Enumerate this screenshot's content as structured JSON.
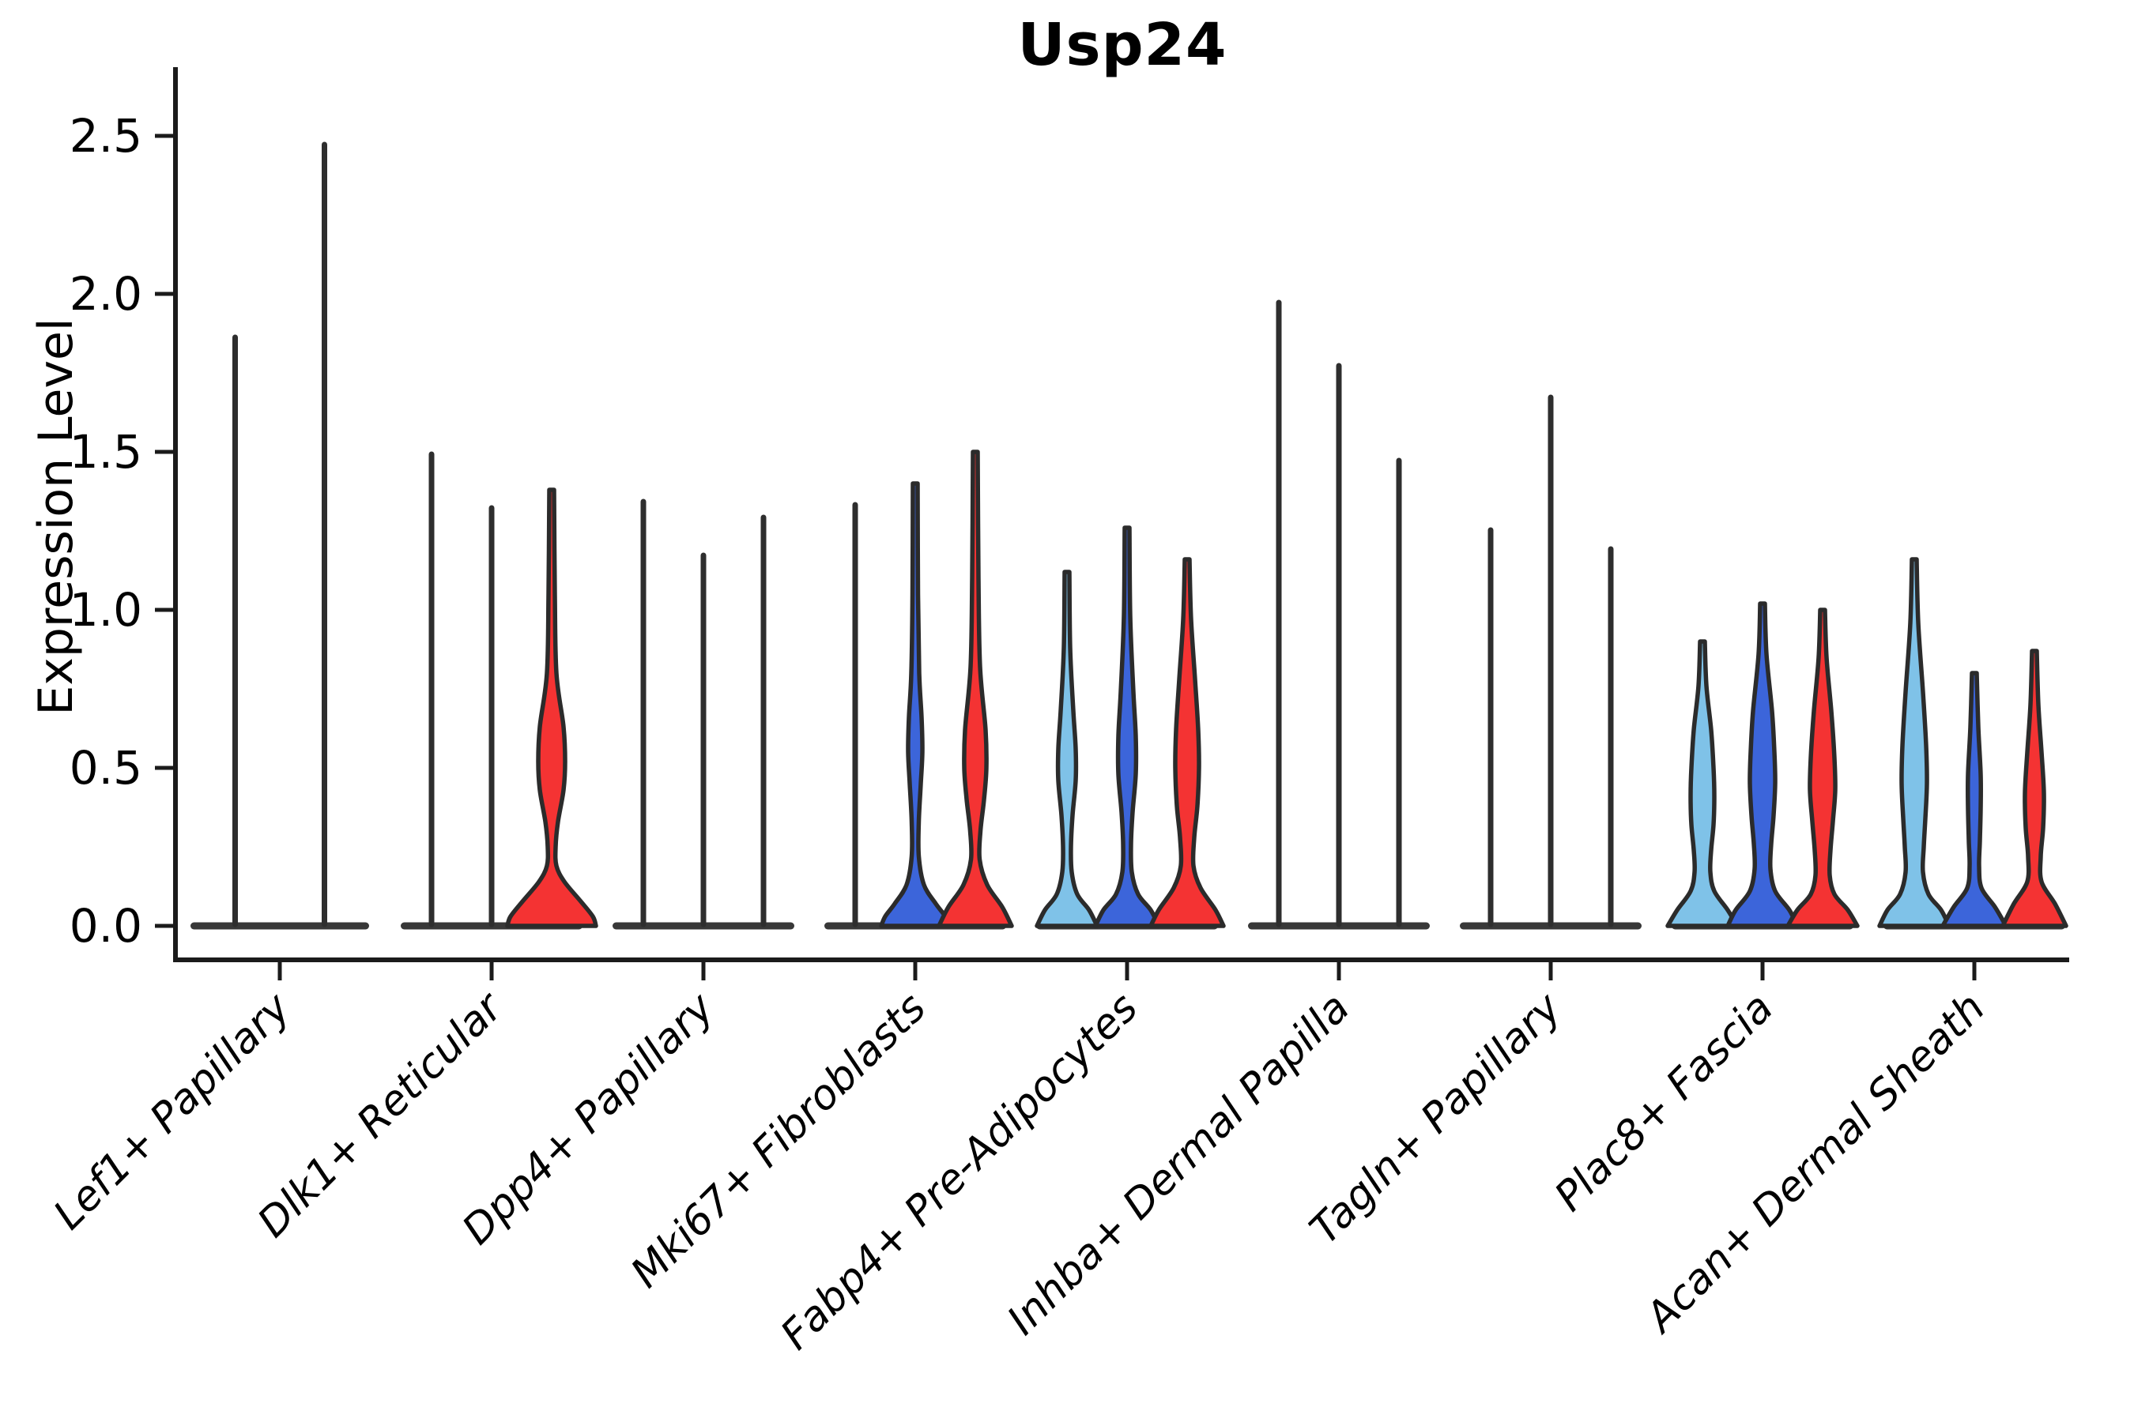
{
  "title": "Usp24",
  "y_axis": {
    "label": "Expression Level",
    "ticks": [
      {
        "label": "0.0",
        "value": 0.0
      },
      {
        "label": "0.5",
        "value": 0.5
      },
      {
        "label": "1.0",
        "value": 1.0
      },
      {
        "label": "1.5",
        "value": 1.5
      },
      {
        "label": "2.0",
        "value": 2.0
      },
      {
        "label": "2.5",
        "value": 2.5
      }
    ]
  },
  "colors": {
    "light_blue": "#7FC2E8",
    "blue": "#3C65DA",
    "red": "#F43333",
    "outline": "#2B2B2B",
    "spike": "#2E2E2E",
    "baseline": "#383838",
    "axis": "#1B1B1B",
    "text": "#000000"
  },
  "chart_data": {
    "type": "violin",
    "title": "Usp24",
    "xlabel": "",
    "ylabel": "Expression Level",
    "ylim": [
      0,
      2.6
    ],
    "grid": false,
    "legend": "none",
    "series_order": [
      "light_blue",
      "blue",
      "red"
    ],
    "categories": [
      "Lef1+ Papillary",
      "Dlk1+ Reticular",
      "Dpp4+ Papillary",
      "Mki67+ Fibroblasts",
      "Fabp4+ Pre-Adipocytes",
      "Inhba+ Dermal Papilla",
      "Tagln+ Papillary",
      "Plac8+ Fascia",
      "Acan+ Dermal Sheath"
    ],
    "groups": [
      {
        "label": "Lef1+ Papillary",
        "violins": [
          {
            "color": "light_blue",
            "max": 1.87,
            "shape": "spike"
          },
          {
            "color": "blue",
            "max": 2.48,
            "shape": "spike"
          }
        ]
      },
      {
        "label": "Dlk1+ Reticular",
        "violins": [
          {
            "color": "light_blue",
            "max": 1.5,
            "shape": "spike"
          },
          {
            "color": "blue",
            "max": 1.33,
            "shape": "spike"
          },
          {
            "color": "red",
            "max": 1.38,
            "shape": "filled",
            "profile": [
              [
                1.38,
                3
              ],
              [
                1.05,
                4
              ],
              [
                0.8,
                6
              ],
              [
                0.63,
                15
              ],
              [
                0.52,
                17
              ],
              [
                0.43,
                15
              ],
              [
                0.33,
                8
              ],
              [
                0.25,
                5
              ],
              [
                0.19,
                6
              ],
              [
                0.14,
                16
              ],
              [
                0.08,
                36
              ],
              [
                0.03,
                52
              ],
              [
                0,
                56
              ]
            ]
          }
        ]
      },
      {
        "label": "Dpp4+ Papillary",
        "violins": [
          {
            "color": "light_blue",
            "max": 1.35,
            "shape": "spike"
          },
          {
            "color": "blue",
            "max": 1.18,
            "shape": "spike"
          },
          {
            "color": "red",
            "max": 1.3,
            "shape": "spike"
          }
        ]
      },
      {
        "label": "Mki67+ Fibroblasts",
        "violins": [
          {
            "color": "light_blue",
            "max": 1.34,
            "shape": "spike"
          },
          {
            "color": "blue",
            "max": 1.4,
            "shape": "filled",
            "profile": [
              [
                1.4,
                3
              ],
              [
                1.05,
                3.5
              ],
              [
                0.8,
                5
              ],
              [
                0.66,
                8
              ],
              [
                0.55,
                9
              ],
              [
                0.45,
                7
              ],
              [
                0.33,
                4.5
              ],
              [
                0.22,
                4.5
              ],
              [
                0.13,
                11
              ],
              [
                0.07,
                26
              ],
              [
                0.03,
                38
              ],
              [
                0,
                43
              ]
            ]
          },
          {
            "color": "red",
            "max": 1.5,
            "shape": "filled",
            "profile": [
              [
                1.5,
                3
              ],
              [
                1.1,
                4
              ],
              [
                0.82,
                6
              ],
              [
                0.62,
                13
              ],
              [
                0.5,
                14
              ],
              [
                0.4,
                11
              ],
              [
                0.3,
                6.5
              ],
              [
                0.21,
                5.5
              ],
              [
                0.13,
                15
              ],
              [
                0.06,
                34
              ],
              [
                0,
                46
              ]
            ]
          }
        ]
      },
      {
        "label": "Fabp4+ Pre-Adipocytes",
        "violins": [
          {
            "color": "light_blue",
            "max": 1.12,
            "shape": "filled",
            "profile": [
              [
                1.12,
                3
              ],
              [
                0.88,
                4
              ],
              [
                0.68,
                8
              ],
              [
                0.56,
                11
              ],
              [
                0.46,
                11
              ],
              [
                0.35,
                7
              ],
              [
                0.25,
                5
              ],
              [
                0.17,
                6
              ],
              [
                0.1,
                13
              ],
              [
                0.05,
                28
              ],
              [
                0,
                38
              ]
            ]
          },
          {
            "color": "blue",
            "max": 1.26,
            "shape": "filled",
            "profile": [
              [
                1.26,
                3
              ],
              [
                0.98,
                4
              ],
              [
                0.74,
                8
              ],
              [
                0.6,
                11
              ],
              [
                0.48,
                11
              ],
              [
                0.36,
                7
              ],
              [
                0.26,
                5
              ],
              [
                0.17,
                6
              ],
              [
                0.1,
                14
              ],
              [
                0.05,
                30
              ],
              [
                0,
                40
              ]
            ]
          },
          {
            "color": "red",
            "max": 1.16,
            "shape": "filled",
            "profile": [
              [
                1.16,
                3
              ],
              [
                0.97,
                5
              ],
              [
                0.78,
                10
              ],
              [
                0.62,
                14
              ],
              [
                0.5,
                15
              ],
              [
                0.38,
                13
              ],
              [
                0.28,
                9
              ],
              [
                0.19,
                8
              ],
              [
                0.12,
                17
              ],
              [
                0.05,
                36
              ],
              [
                0,
                46
              ]
            ]
          }
        ]
      },
      {
        "label": "Inhba+ Dermal Papilla",
        "violins": [
          {
            "color": "light_blue",
            "max": 1.98,
            "shape": "spike"
          },
          {
            "color": "blue",
            "max": 1.78,
            "shape": "spike"
          },
          {
            "color": "red",
            "max": 1.48,
            "shape": "spike"
          }
        ]
      },
      {
        "label": "Tagln+ Papillary",
        "violins": [
          {
            "color": "light_blue",
            "max": 1.26,
            "shape": "spike"
          },
          {
            "color": "blue",
            "max": 1.68,
            "shape": "spike"
          },
          {
            "color": "red",
            "max": 1.2,
            "shape": "spike"
          }
        ]
      },
      {
        "label": "Plac8+ Fascia",
        "violins": [
          {
            "color": "light_blue",
            "max": 0.9,
            "shape": "filled",
            "profile": [
              [
                0.9,
                3
              ],
              [
                0.76,
                5
              ],
              [
                0.62,
                11
              ],
              [
                0.5,
                14
              ],
              [
                0.41,
                15
              ],
              [
                0.32,
                14
              ],
              [
                0.24,
                11
              ],
              [
                0.17,
                10
              ],
              [
                0.11,
                15
              ],
              [
                0.05,
                32
              ],
              [
                0,
                44
              ]
            ]
          },
          {
            "color": "blue",
            "max": 1.02,
            "shape": "filled",
            "profile": [
              [
                1.02,
                3
              ],
              [
                0.86,
                5
              ],
              [
                0.68,
                12
              ],
              [
                0.55,
                15
              ],
              [
                0.45,
                16
              ],
              [
                0.35,
                14
              ],
              [
                0.26,
                11
              ],
              [
                0.18,
                10
              ],
              [
                0.11,
                16
              ],
              [
                0.05,
                34
              ],
              [
                0,
                44
              ]
            ]
          },
          {
            "color": "red",
            "max": 1.0,
            "shape": "filled",
            "profile": [
              [
                1.0,
                3
              ],
              [
                0.85,
                5
              ],
              [
                0.68,
                11
              ],
              [
                0.53,
                15
              ],
              [
                0.43,
                16
              ],
              [
                0.33,
                13
              ],
              [
                0.24,
                10
              ],
              [
                0.16,
                9
              ],
              [
                0.1,
                15
              ],
              [
                0.05,
                32
              ],
              [
                0,
                44
              ]
            ]
          }
        ]
      },
      {
        "label": "Acan+ Dermal Sheath",
        "violins": [
          {
            "color": "light_blue",
            "max": 1.16,
            "shape": "filled",
            "profile": [
              [
                1.16,
                3
              ],
              [
                0.96,
                5
              ],
              [
                0.74,
                11
              ],
              [
                0.57,
                15
              ],
              [
                0.45,
                16
              ],
              [
                0.34,
                14
              ],
              [
                0.25,
                12
              ],
              [
                0.17,
                11
              ],
              [
                0.1,
                18
              ],
              [
                0.05,
                34
              ],
              [
                0,
                44
              ]
            ]
          },
          {
            "color": "blue",
            "max": 0.8,
            "shape": "filled",
            "profile": [
              [
                0.8,
                3
              ],
              [
                0.63,
                5
              ],
              [
                0.48,
                8
              ],
              [
                0.37,
                8
              ],
              [
                0.27,
                7
              ],
              [
                0.19,
                6
              ],
              [
                0.12,
                9
              ],
              [
                0.06,
                26
              ],
              [
                0,
                40
              ]
            ]
          },
          {
            "color": "red",
            "max": 0.87,
            "shape": "filled",
            "profile": [
              [
                0.87,
                3
              ],
              [
                0.7,
                5
              ],
              [
                0.55,
                9
              ],
              [
                0.42,
                12
              ],
              [
                0.31,
                11
              ],
              [
                0.22,
                8
              ],
              [
                0.14,
                9
              ],
              [
                0.07,
                26
              ],
              [
                0,
                40
              ]
            ]
          }
        ]
      }
    ]
  }
}
